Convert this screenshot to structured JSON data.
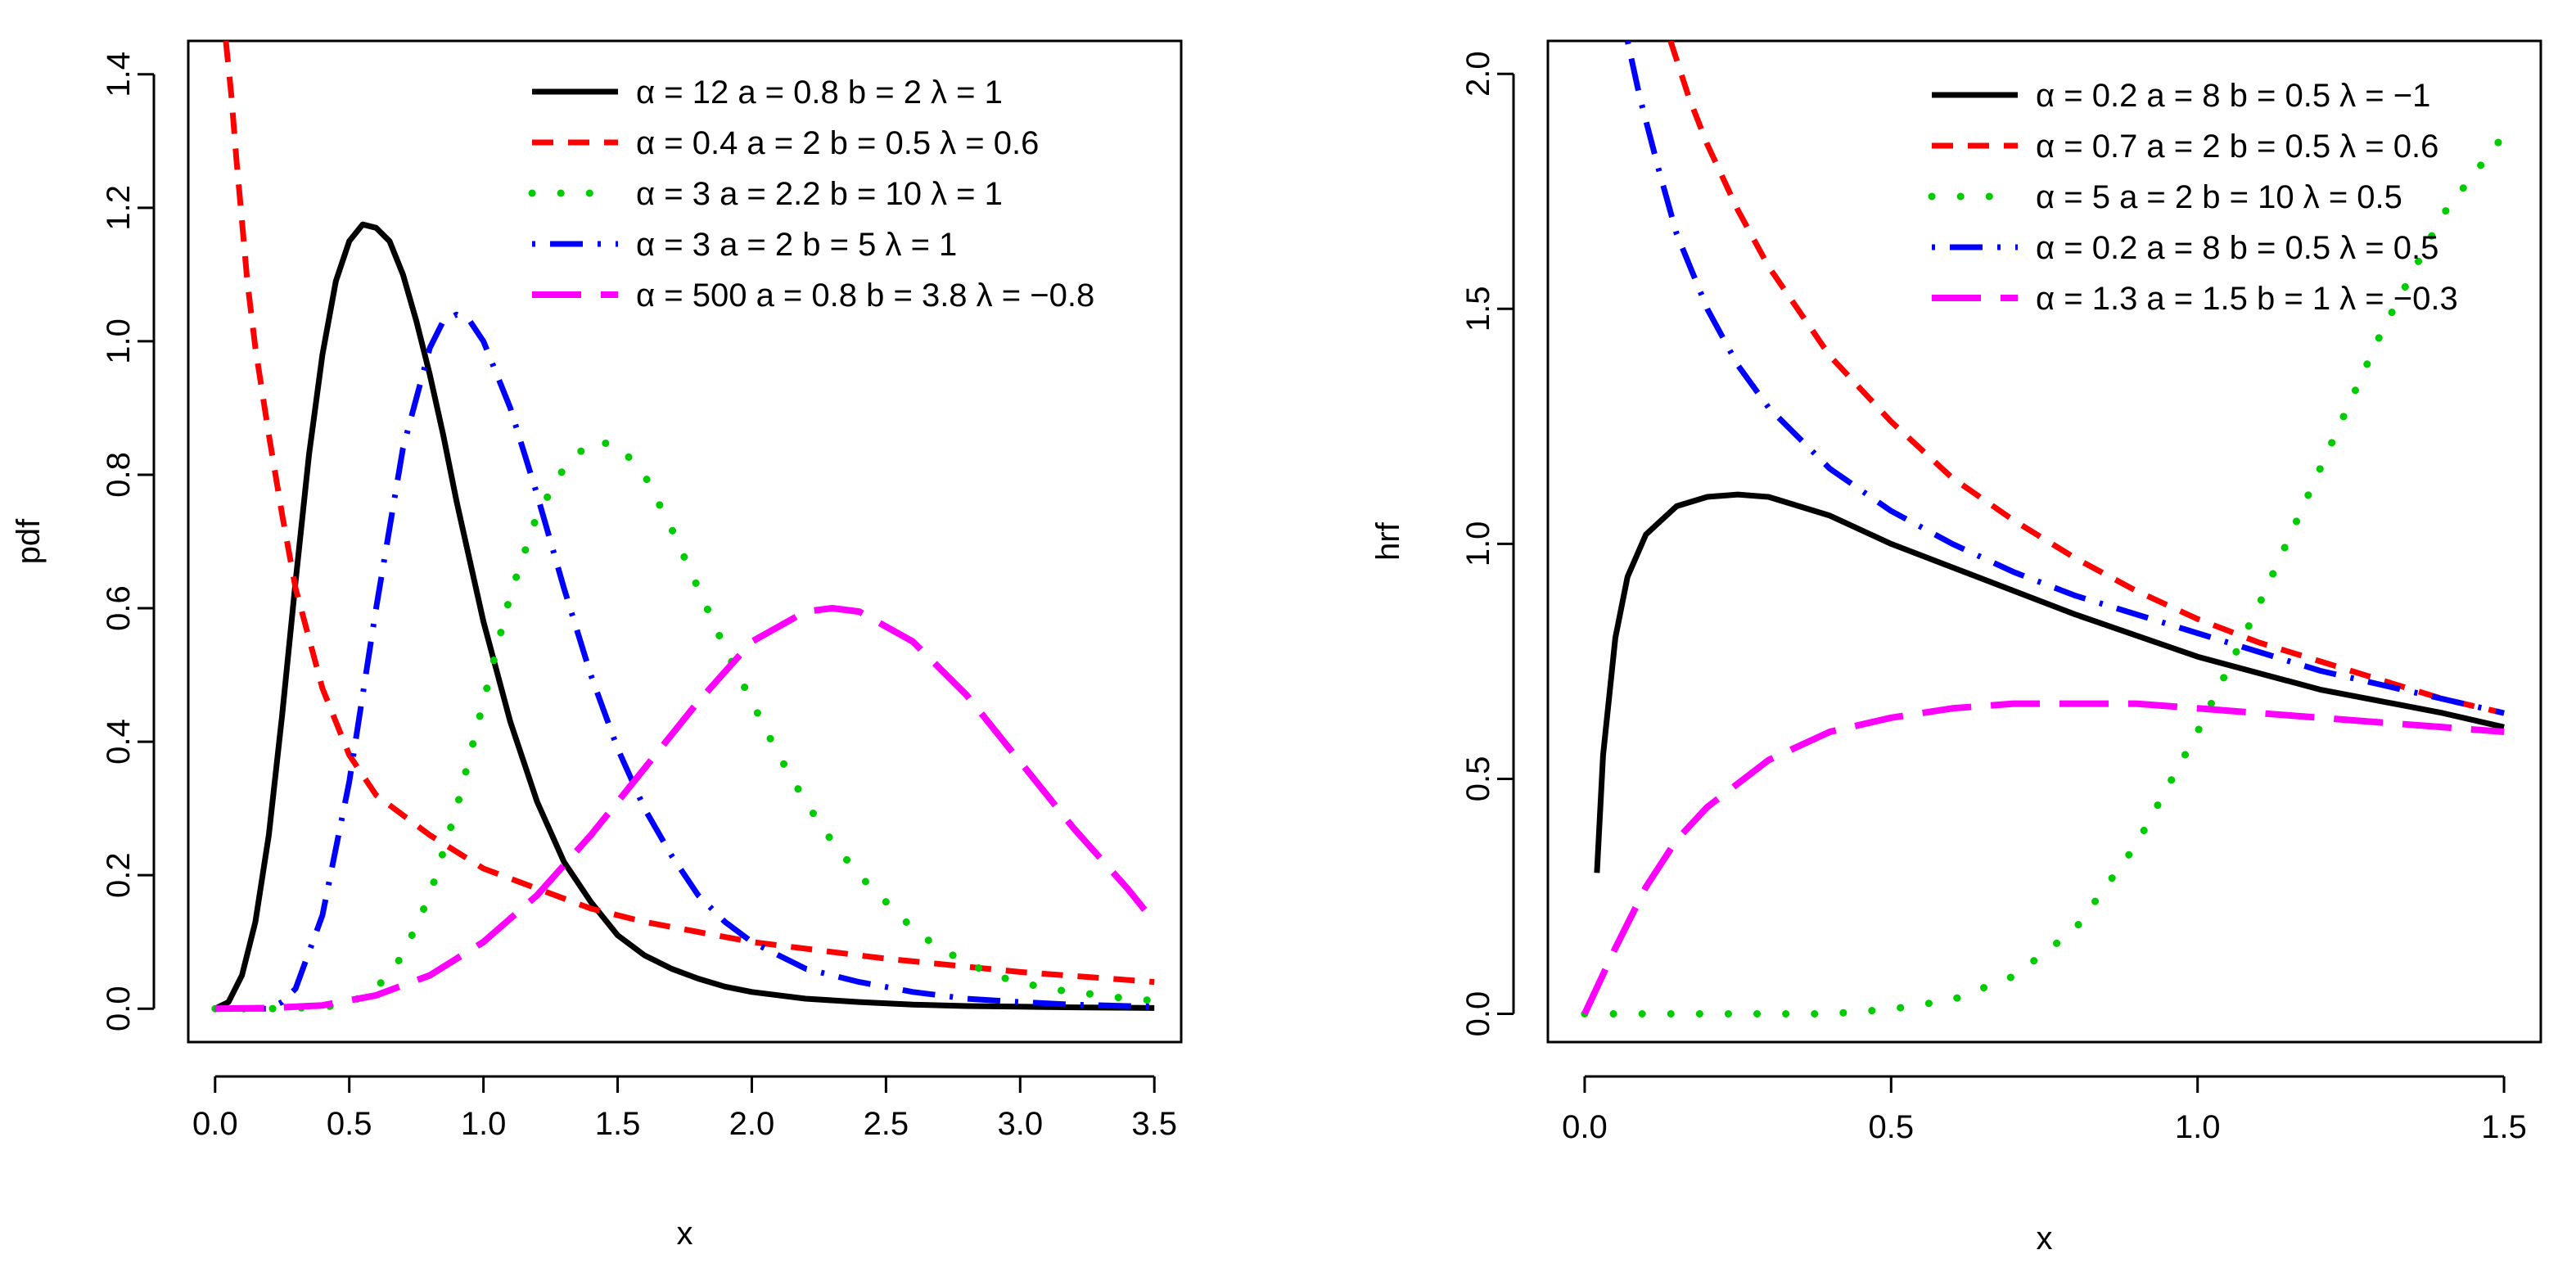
{
  "chart_data": [
    {
      "type": "line",
      "xlabel": "x",
      "ylabel": "pdf",
      "xlim": [
        -0.1,
        3.6
      ],
      "ylim": [
        -0.05,
        1.45
      ],
      "xticks": [
        0.0,
        0.5,
        1.0,
        1.5,
        2.0,
        2.5,
        3.0,
        3.5
      ],
      "xtick_labels": [
        "0.0",
        "0.5",
        "1.0",
        "1.5",
        "2.0",
        "2.5",
        "3.0",
        "3.5"
      ],
      "yticks": [
        0.0,
        0.2,
        0.4,
        0.6,
        0.8,
        1.0,
        1.2,
        1.4
      ],
      "ytick_labels": [
        "0.0",
        "0.2",
        "0.4",
        "0.6",
        "0.8",
        "1.0",
        "1.2",
        "1.4"
      ],
      "legend_position": "top-right",
      "series": [
        {
          "name": "α = 12  a = 0.8  b = 2  λ = 1",
          "color": "#000000",
          "style": "solid",
          "x": [
            0,
            0.05,
            0.1,
            0.15,
            0.2,
            0.25,
            0.3,
            0.35,
            0.4,
            0.45,
            0.5,
            0.55,
            0.6,
            0.65,
            0.7,
            0.75,
            0.8,
            0.85,
            0.9,
            0.95,
            1.0,
            1.1,
            1.2,
            1.3,
            1.4,
            1.5,
            1.6,
            1.7,
            1.8,
            1.9,
            2.0,
            2.2,
            2.4,
            2.6,
            2.8,
            3.0,
            3.2,
            3.5
          ],
          "y": [
            0,
            0.01,
            0.05,
            0.13,
            0.26,
            0.44,
            0.64,
            0.83,
            0.98,
            1.09,
            1.15,
            1.175,
            1.17,
            1.15,
            1.1,
            1.03,
            0.95,
            0.86,
            0.76,
            0.67,
            0.58,
            0.43,
            0.31,
            0.22,
            0.16,
            0.11,
            0.08,
            0.06,
            0.045,
            0.033,
            0.025,
            0.015,
            0.01,
            0.006,
            0.004,
            0.003,
            0.002,
            0.001
          ]
        },
        {
          "name": "α = 0.4  a = 2  b = 0.5  λ = 0.6",
          "color": "#ff0000",
          "style": "dashed",
          "x": [
            0.04,
            0.06,
            0.08,
            0.1,
            0.12,
            0.15,
            0.2,
            0.25,
            0.3,
            0.4,
            0.5,
            0.6,
            0.7,
            0.8,
            1.0,
            1.2,
            1.4,
            1.6,
            1.8,
            2.0,
            2.2,
            2.5,
            3.0,
            3.5
          ],
          "y": [
            1.45,
            1.37,
            1.27,
            1.18,
            1.09,
            0.99,
            0.86,
            0.74,
            0.63,
            0.48,
            0.38,
            0.32,
            0.29,
            0.26,
            0.21,
            0.18,
            0.15,
            0.13,
            0.115,
            0.1,
            0.09,
            0.075,
            0.055,
            0.04
          ]
        },
        {
          "name": "α = 3  a = 2.2  b = 10  λ = 1",
          "color": "#00cc00",
          "style": "dotted",
          "x": [
            0,
            0.2,
            0.4,
            0.5,
            0.6,
            0.7,
            0.8,
            0.9,
            1.0,
            1.1,
            1.2,
            1.3,
            1.4,
            1.5,
            1.6,
            1.7,
            1.8,
            1.9,
            2.0,
            2.1,
            2.2,
            2.3,
            2.4,
            2.5,
            2.6,
            2.7,
            2.8,
            2.9,
            3.0,
            3.1,
            3.2,
            3.3,
            3.4,
            3.5
          ],
          "y": [
            0,
            0,
            0.002,
            0.008,
            0.03,
            0.08,
            0.17,
            0.3,
            0.46,
            0.62,
            0.74,
            0.81,
            0.85,
            0.845,
            0.8,
            0.72,
            0.63,
            0.54,
            0.46,
            0.38,
            0.31,
            0.25,
            0.2,
            0.16,
            0.12,
            0.09,
            0.07,
            0.05,
            0.04,
            0.03,
            0.025,
            0.02,
            0.015,
            0.012
          ]
        },
        {
          "name": "α = 3  a = 2  b = 5  λ = 1",
          "color": "#0000ff",
          "style": "dotdash",
          "x": [
            0,
            0.1,
            0.2,
            0.25,
            0.3,
            0.4,
            0.5,
            0.6,
            0.7,
            0.8,
            0.85,
            0.9,
            0.95,
            1.0,
            1.1,
            1.2,
            1.3,
            1.4,
            1.5,
            1.6,
            1.7,
            1.8,
            1.9,
            2.0,
            2.1,
            2.2,
            2.4,
            2.6,
            2.8,
            3.0,
            3.2,
            3.5
          ],
          "y": [
            0,
            0,
            0,
            0.01,
            0.03,
            0.14,
            0.34,
            0.6,
            0.84,
            0.99,
            1.03,
            1.04,
            1.03,
            1.0,
            0.9,
            0.77,
            0.63,
            0.5,
            0.39,
            0.3,
            0.23,
            0.17,
            0.13,
            0.1,
            0.08,
            0.06,
            0.04,
            0.025,
            0.015,
            0.01,
            0.006,
            0.003
          ]
        },
        {
          "name": "α = 500  a = 0.8  b = 3.8  λ = −0.8",
          "color": "#ff00ff",
          "style": "longdash",
          "x": [
            0,
            0.2,
            0.4,
            0.6,
            0.8,
            1.0,
            1.2,
            1.4,
            1.6,
            1.8,
            2.0,
            2.2,
            2.3,
            2.4,
            2.6,
            2.8,
            3.0,
            3.2,
            3.4,
            3.5
          ],
          "y": [
            0,
            0.001,
            0.005,
            0.02,
            0.05,
            0.1,
            0.17,
            0.26,
            0.36,
            0.46,
            0.55,
            0.595,
            0.6,
            0.595,
            0.55,
            0.47,
            0.37,
            0.27,
            0.18,
            0.13
          ]
        }
      ]
    },
    {
      "type": "line",
      "xlabel": "x",
      "ylabel": "hrf",
      "xlim": [
        -0.06,
        1.56
      ],
      "ylim": [
        -0.06,
        2.07
      ],
      "xticks": [
        0.0,
        0.5,
        1.0,
        1.5
      ],
      "xtick_labels": [
        "0.0",
        "0.5",
        "1.0",
        "1.5"
      ],
      "yticks": [
        0.0,
        0.5,
        1.0,
        1.5,
        2.0
      ],
      "ytick_labels": [
        "0.0",
        "0.5",
        "1.0",
        "1.5",
        "2.0"
      ],
      "legend_position": "top-right",
      "series": [
        {
          "name": "α = 0.2  a = 8  b = 0.5  λ = −1",
          "color": "#000000",
          "style": "solid",
          "x": [
            0.02,
            0.03,
            0.05,
            0.07,
            0.1,
            0.15,
            0.2,
            0.25,
            0.3,
            0.4,
            0.5,
            0.6,
            0.8,
            1.0,
            1.2,
            1.4,
            1.5
          ],
          "y": [
            0.3,
            0.55,
            0.8,
            0.93,
            1.02,
            1.08,
            1.1,
            1.105,
            1.1,
            1.06,
            1.0,
            0.95,
            0.85,
            0.76,
            0.69,
            0.64,
            0.61
          ]
        },
        {
          "name": "α = 0.7  a = 2  b = 0.5  λ = 0.6",
          "color": "#ff0000",
          "style": "dashed",
          "x": [
            0.14,
            0.17,
            0.2,
            0.25,
            0.3,
            0.4,
            0.5,
            0.6,
            0.7,
            0.8,
            0.9,
            1.0,
            1.1,
            1.2,
            1.3,
            1.4,
            1.5
          ],
          "y": [
            2.07,
            1.95,
            1.85,
            1.71,
            1.59,
            1.4,
            1.26,
            1.14,
            1.05,
            0.97,
            0.9,
            0.84,
            0.79,
            0.75,
            0.71,
            0.67,
            0.64
          ]
        },
        {
          "name": "α = 5  a = 2  b = 10  λ = 0.5",
          "color": "#00cc00",
          "style": "dotted",
          "x": [
            0,
            0.05,
            0.1,
            0.2,
            0.3,
            0.4,
            0.5,
            0.6,
            0.7,
            0.8,
            0.9,
            1.0,
            1.1,
            1.2,
            1.3,
            1.4,
            1.5
          ],
          "y": [
            0,
            0,
            0,
            0,
            0,
            0,
            0.01,
            0.03,
            0.08,
            0.18,
            0.36,
            0.6,
            0.87,
            1.16,
            1.45,
            1.7,
            1.87
          ]
        },
        {
          "name": "α = 0.2  a = 8  b = 0.5  λ = 0.5",
          "color": "#0000ff",
          "style": "dotdash",
          "x": [
            0.07,
            0.09,
            0.12,
            0.15,
            0.2,
            0.25,
            0.3,
            0.4,
            0.5,
            0.6,
            0.7,
            0.8,
            0.9,
            1.0,
            1.1,
            1.2,
            1.3,
            1.4,
            1.5
          ],
          "y": [
            2.07,
            1.95,
            1.8,
            1.66,
            1.5,
            1.38,
            1.29,
            1.16,
            1.07,
            1.0,
            0.94,
            0.89,
            0.85,
            0.81,
            0.77,
            0.73,
            0.7,
            0.67,
            0.64
          ]
        },
        {
          "name": "α = 1.3  a = 1.5  b = 1  λ = −0.3",
          "color": "#ff00ff",
          "style": "longdash",
          "x": [
            0,
            0.05,
            0.1,
            0.15,
            0.2,
            0.3,
            0.4,
            0.5,
            0.6,
            0.7,
            0.8,
            0.9,
            1.0,
            1.1,
            1.2,
            1.3,
            1.4,
            1.5
          ],
          "y": [
            0,
            0.14,
            0.27,
            0.37,
            0.44,
            0.54,
            0.6,
            0.63,
            0.65,
            0.66,
            0.66,
            0.66,
            0.65,
            0.64,
            0.63,
            0.62,
            0.61,
            0.6
          ]
        }
      ]
    }
  ]
}
